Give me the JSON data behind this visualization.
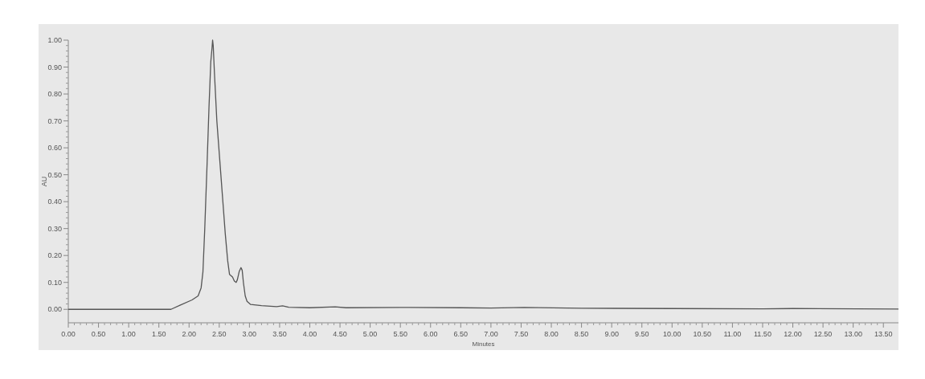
{
  "chart_data": {
    "type": "line",
    "xlabel": "Minutes",
    "ylabel": "AU",
    "series": [
      {
        "color": "#555555",
        "x": [
          0,
          1.7,
          1.85,
          2.05,
          2.15,
          2.2,
          2.23,
          2.26,
          2.3,
          2.33,
          2.36,
          2.38,
          2.39,
          2.4,
          2.42,
          2.46,
          2.51,
          2.56,
          2.6,
          2.64,
          2.67,
          2.72,
          2.75,
          2.78,
          2.8,
          2.83,
          2.86,
          2.88,
          2.9,
          2.93,
          2.96,
          3.02,
          3.2,
          3.45,
          3.55,
          3.65,
          4.0,
          4.42,
          4.6,
          5.5,
          6.5,
          7.0,
          7.55,
          8.5,
          10.0,
          11.5,
          12.0,
          13.75
        ],
        "values": [
          0,
          0,
          0.015,
          0.035,
          0.05,
          0.08,
          0.14,
          0.3,
          0.55,
          0.75,
          0.92,
          0.97,
          1.0,
          0.98,
          0.88,
          0.7,
          0.55,
          0.4,
          0.28,
          0.18,
          0.13,
          0.12,
          0.105,
          0.1,
          0.11,
          0.14,
          0.155,
          0.145,
          0.1,
          0.05,
          0.03,
          0.018,
          0.014,
          0.01,
          0.013,
          0.008,
          0.006,
          0.009,
          0.006,
          0.007,
          0.006,
          0.005,
          0.007,
          0.004,
          0.003,
          0.002,
          0.003,
          0.001
        ]
      }
    ],
    "xlim": [
      0,
      13.75
    ],
    "ylim": [
      -0.05,
      1.0
    ],
    "xticks": [
      {
        "value": 0,
        "label": "0.00"
      },
      {
        "value": 0.5,
        "label": "0.50"
      },
      {
        "value": 1,
        "label": "1.00"
      },
      {
        "value": 1.5,
        "label": "1.50"
      },
      {
        "value": 2,
        "label": "2.00"
      },
      {
        "value": 2.5,
        "label": "2.50"
      },
      {
        "value": 3,
        "label": "3.00"
      },
      {
        "value": 3.5,
        "label": "3.50"
      },
      {
        "value": 4,
        "label": "4.00"
      },
      {
        "value": 4.5,
        "label": "4.50"
      },
      {
        "value": 5,
        "label": "5.00"
      },
      {
        "value": 5.5,
        "label": "5.50"
      },
      {
        "value": 6,
        "label": "6.00"
      },
      {
        "value": 6.5,
        "label": "6.50"
      },
      {
        "value": 7,
        "label": "7.00"
      },
      {
        "value": 7.5,
        "label": "7.50"
      },
      {
        "value": 8,
        "label": "8.00"
      },
      {
        "value": 8.5,
        "label": "8.50"
      },
      {
        "value": 9,
        "label": "9.00"
      },
      {
        "value": 9.5,
        "label": "9.50"
      },
      {
        "value": 10,
        "label": "10.00"
      },
      {
        "value": 10.5,
        "label": "10.50"
      },
      {
        "value": 11,
        "label": "11.00"
      },
      {
        "value": 11.5,
        "label": "11.50"
      },
      {
        "value": 12,
        "label": "12.00"
      },
      {
        "value": 12.5,
        "label": "12.50"
      },
      {
        "value": 13,
        "label": "13.00"
      },
      {
        "value": 13.5,
        "label": "13.50"
      }
    ],
    "yticks": [
      {
        "value": 0,
        "label": "0.00"
      },
      {
        "value": 0.1,
        "label": "0.10"
      },
      {
        "value": 0.2,
        "label": "0.20"
      },
      {
        "value": 0.3,
        "label": "0.30"
      },
      {
        "value": 0.4,
        "label": "0.40"
      },
      {
        "value": 0.5,
        "label": "0.50"
      },
      {
        "value": 0.6,
        "label": "0.60"
      },
      {
        "value": 0.7,
        "label": "0.70"
      },
      {
        "value": 0.8,
        "label": "0.80"
      },
      {
        "value": 0.9,
        "label": "0.90"
      },
      {
        "value": 1.0,
        "label": "1.00"
      }
    ],
    "grid": false
  }
}
